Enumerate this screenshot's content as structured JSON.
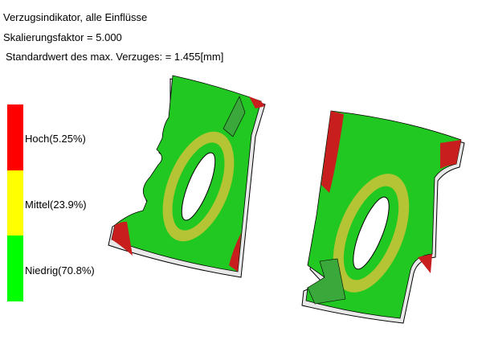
{
  "header": {
    "title": "Verzugsindikator, alle Einflüsse",
    "scale": "Skalierungsfaktor = 5.000",
    "standard": "Standardwert des max. Verzuges: = 1.455[mm]"
  },
  "legend": {
    "items": [
      {
        "label": "Hoch(5.25%)",
        "color": "#ff0000"
      },
      {
        "label": "Mittel(23.9%)",
        "color": "#ffff00"
      },
      {
        "label": "Niedrig(70.8%)",
        "color": "#00ff00"
      }
    ]
  },
  "colors": {
    "green": "#22c822",
    "yellow_green": "#b4c434",
    "red": "#c81e1e",
    "edge": "#e8e8e8"
  }
}
